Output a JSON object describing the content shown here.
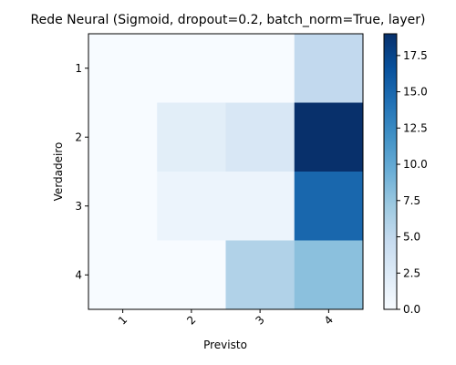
{
  "chart_data": {
    "type": "heatmap",
    "title": "Rede Neural (Sigmoid, dropout=0.2, batch_norm=True, layer)",
    "xlabel": "Previsto",
    "ylabel": "Verdadeiro",
    "x_categories": [
      "1",
      "2",
      "3",
      "4"
    ],
    "y_categories": [
      "1",
      "2",
      "3",
      "4"
    ],
    "values": [
      [
        0,
        0,
        0,
        5
      ],
      [
        0,
        2,
        3,
        19
      ],
      [
        0,
        1,
        1,
        15
      ],
      [
        0,
        0,
        6,
        8
      ]
    ],
    "colormap": "Blues",
    "colorbar": {
      "min": 0,
      "max": 19,
      "ticks": [
        "0.0",
        "2.5",
        "5.0",
        "7.5",
        "10.0",
        "12.5",
        "15.0",
        "17.5"
      ],
      "tick_values": [
        0,
        2.5,
        5,
        7.5,
        10,
        12.5,
        15,
        17.5
      ]
    },
    "grid": false
  }
}
